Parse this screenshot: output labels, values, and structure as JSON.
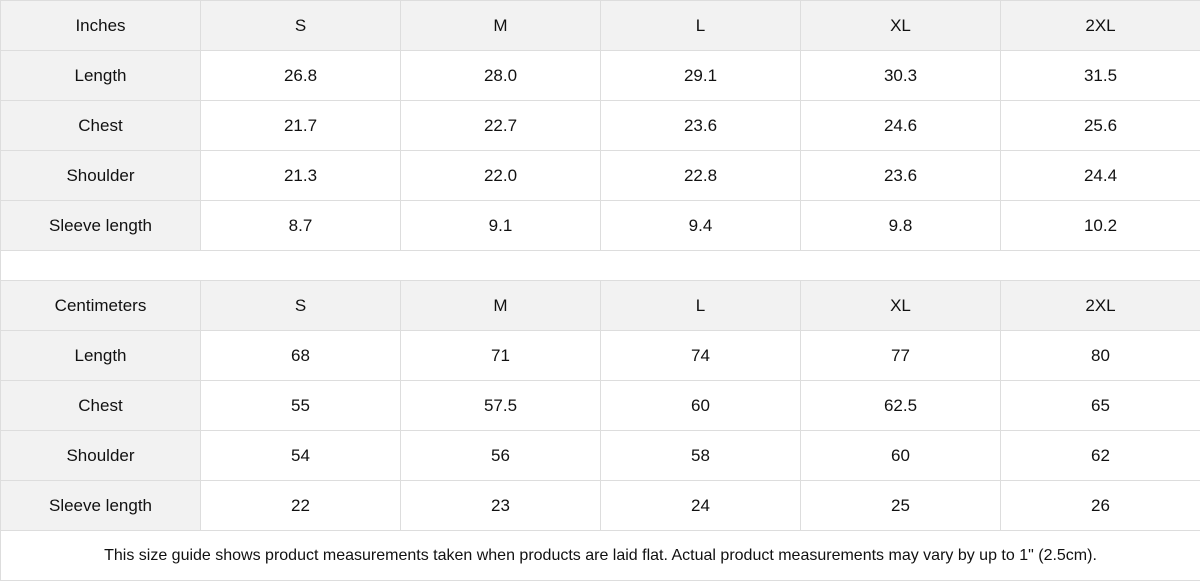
{
  "sizes": [
    "S",
    "M",
    "L",
    "XL",
    "2XL"
  ],
  "inches": {
    "header": "Inches",
    "rows": [
      {
        "label": "Length",
        "values": [
          "26.8",
          "28.0",
          "29.1",
          "30.3",
          "31.5"
        ]
      },
      {
        "label": "Chest",
        "values": [
          "21.7",
          "22.7",
          "23.6",
          "24.6",
          "25.6"
        ]
      },
      {
        "label": "Shoulder",
        "values": [
          "21.3",
          "22.0",
          "22.8",
          "23.6",
          "24.4"
        ]
      },
      {
        "label": "Sleeve length",
        "values": [
          "8.7",
          "9.1",
          "9.4",
          "9.8",
          "10.2"
        ]
      }
    ]
  },
  "centimeters": {
    "header": "Centimeters",
    "rows": [
      {
        "label": "Length",
        "values": [
          "68",
          "71",
          "74",
          "77",
          "80"
        ]
      },
      {
        "label": "Chest",
        "values": [
          "55",
          "57.5",
          "60",
          "62.5",
          "65"
        ]
      },
      {
        "label": "Shoulder",
        "values": [
          "54",
          "56",
          "58",
          "60",
          "62"
        ]
      },
      {
        "label": "Sleeve length",
        "values": [
          "22",
          "23",
          "24",
          "25",
          "26"
        ]
      }
    ]
  },
  "note": "This size guide shows product measurements taken when products are laid flat.  Actual product measurements may vary by up to 1\" (2.5cm).",
  "colors": {
    "header_bg": "#f2f2f2",
    "border": "#dddddd"
  }
}
